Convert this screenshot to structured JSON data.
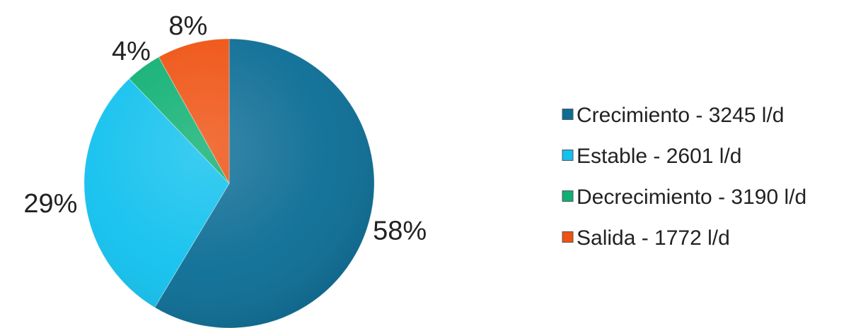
{
  "chart_data": {
    "type": "pie",
    "categories": [
      "Crecimiento - 3245 l/d",
      "Estable - 2601 l/d",
      "Decrecimiento - 3190 l/d",
      "Salida - 1772 l/d"
    ],
    "values": [
      58,
      29,
      4,
      8
    ],
    "data_labels": [
      "58%",
      "29%",
      "4%",
      "8%"
    ],
    "colors": [
      "#0c6d95",
      "#12c1ee",
      "#0fb073",
      "#ef5212"
    ],
    "legend_position": "right",
    "start_angle_deg": 0,
    "direction": "clockwise"
  }
}
